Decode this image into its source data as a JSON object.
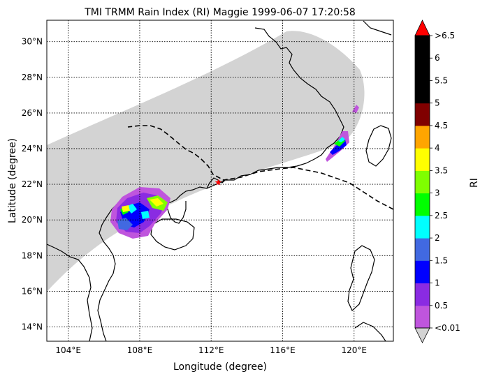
{
  "title": "TMI TRMM Rain Index (RI) Maggie 1999-06-07 17:20:58",
  "xlabel": "Longitude (degree)",
  "ylabel": "Latitude (degree)",
  "colorbar": {
    "label": "RI",
    "tick_labels": [
      "<0.01",
      "0.5",
      "1",
      "1.5",
      "2",
      "2.5",
      "3",
      "3.5",
      "4",
      "4.5",
      "5",
      "5.5",
      "6",
      ">6.5"
    ],
    "under_color": "#d3d3d3",
    "over_color": "#ff0000",
    "colors": [
      "#bf55dd",
      "#8a2be2",
      "#0000ff",
      "#4169e1",
      "#00ffff",
      "#00ff00",
      "#7fff00",
      "#ffff00",
      "#ffa500",
      "#800000",
      "#000000",
      "#000000",
      "#000000"
    ]
  },
  "map": {
    "lon_range": [
      102.8,
      122.2
    ],
    "lat_range": [
      13.2,
      31.2
    ],
    "lon_ticks": [
      {
        "value": 104,
        "label": "104°E"
      },
      {
        "value": 108,
        "label": "108°E"
      },
      {
        "value": 112,
        "label": "112°E"
      },
      {
        "value": 116,
        "label": "116°E"
      },
      {
        "value": 120,
        "label": "120°E"
      }
    ],
    "lat_ticks": [
      {
        "value": 14,
        "label": "14°N"
      },
      {
        "value": 16,
        "label": "16°N"
      },
      {
        "value": 18,
        "label": "18°N"
      },
      {
        "value": 20,
        "label": "20°N"
      },
      {
        "value": 22,
        "label": "22°N"
      },
      {
        "value": 24,
        "label": "24°N"
      },
      {
        "value": 26,
        "label": "26°N"
      },
      {
        "value": 28,
        "label": "28°N"
      },
      {
        "value": 30,
        "label": "30°N"
      }
    ],
    "swath_color": "#d3d3d3",
    "storm_center": {
      "lon": 112.4,
      "lat": 22.1,
      "color": "#ff0000"
    }
  }
}
